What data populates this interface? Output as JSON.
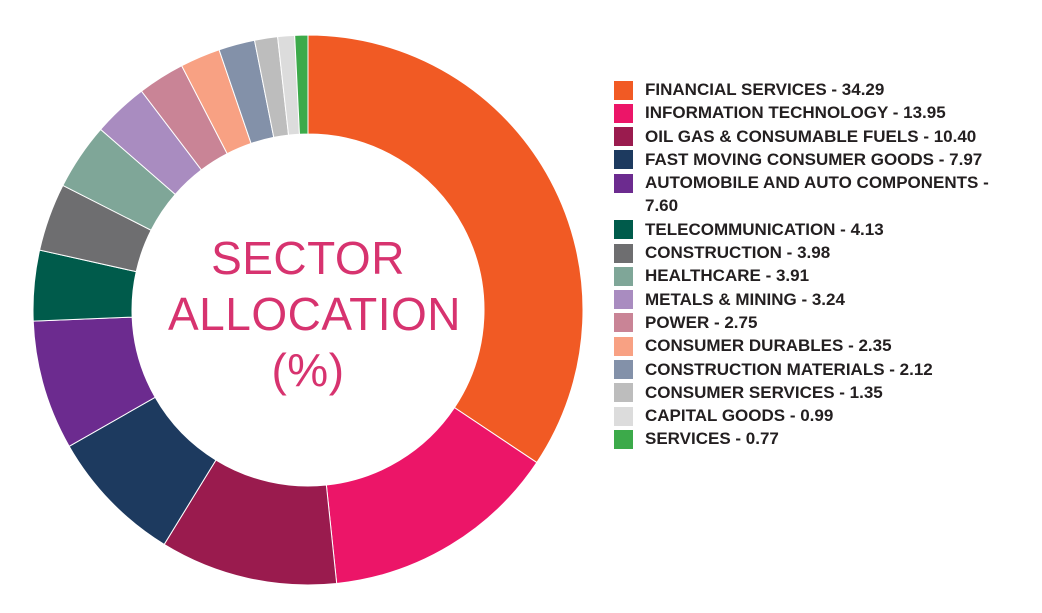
{
  "chart_data": {
    "type": "donut",
    "title": "SECTOR ALLOCATION (%)",
    "categories": [
      "FINANCIAL SERVICES",
      "INFORMATION TECHNOLOGY",
      "OIL GAS & CONSUMABLE FUELS",
      "FAST MOVING CONSUMER GOODS",
      "AUTOMOBILE AND AUTO COMPONENTS",
      "TELECOMMUNICATION",
      "CONSTRUCTION",
      "HEALTHCARE",
      "METALS & MINING",
      "POWER",
      "CONSUMER DURABLES",
      "CONSTRUCTION MATERIALS",
      "CONSUMER SERVICES",
      "CAPITAL GOODS",
      "SERVICES"
    ],
    "values": [
      34.29,
      13.95,
      10.4,
      7.97,
      7.6,
      4.13,
      3.98,
      3.91,
      3.24,
      2.75,
      2.35,
      2.12,
      1.35,
      0.99,
      0.77
    ],
    "value_labels": [
      "34.29",
      "13.95",
      "10.40",
      "7.97",
      "7.60",
      "4.13",
      "3.98",
      "3.91",
      "3.24",
      "2.75",
      "2.35",
      "2.12",
      "1.35",
      "0.99",
      "0.77"
    ],
    "label_separator": " - ",
    "colors": [
      "#f15a24",
      "#ec1568",
      "#9a1b4e",
      "#1d3a5f",
      "#6c2b8f",
      "#005b4b",
      "#6e6e70",
      "#7fa698",
      "#a98cc0",
      "#c98496",
      "#f8a183",
      "#8391a9",
      "#bdbdbd",
      "#dcdcdc",
      "#3caa4a"
    ],
    "legend": "right"
  }
}
